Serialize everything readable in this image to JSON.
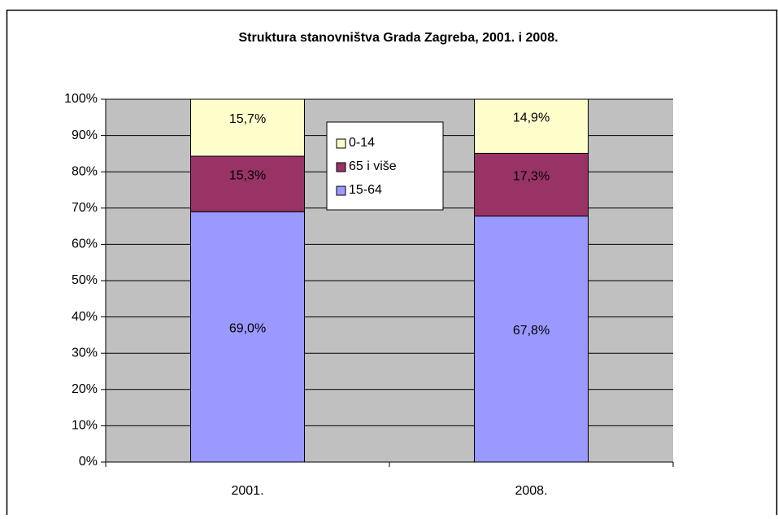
{
  "chart_data": {
    "type": "stacked_bar",
    "title": "Struktura stanovništva Grada Zagreba, 2001. i 2008.",
    "categories": [
      "2001.",
      "2008."
    ],
    "series": [
      {
        "name": "15-64",
        "color": "#9999ff",
        "values": [
          69.0,
          67.8
        ],
        "value_labels": [
          "69,0%",
          "67,8%"
        ]
      },
      {
        "name": "65 i više",
        "color": "#993366",
        "values": [
          15.3,
          17.3
        ],
        "value_labels": [
          "15,3%",
          "17,3%"
        ]
      },
      {
        "name": "0-14",
        "color": "#ffffcc",
        "values": [
          15.7,
          14.9
        ],
        "value_labels": [
          "15,7%",
          "14,9%"
        ]
      }
    ],
    "ylim": [
      0,
      100
    ],
    "yticks": [
      {
        "value": 0,
        "label": "0%"
      },
      {
        "value": 10,
        "label": "10%"
      },
      {
        "value": 20,
        "label": "20%"
      },
      {
        "value": 30,
        "label": "30%"
      },
      {
        "value": 40,
        "label": "40%"
      },
      {
        "value": 50,
        "label": "50%"
      },
      {
        "value": 60,
        "label": "60%"
      },
      {
        "value": 70,
        "label": "70%"
      },
      {
        "value": 80,
        "label": "80%"
      },
      {
        "value": 90,
        "label": "90%"
      },
      {
        "value": 100,
        "label": "100%"
      }
    ],
    "grid": true,
    "plot_background": "#c0c0c0"
  }
}
